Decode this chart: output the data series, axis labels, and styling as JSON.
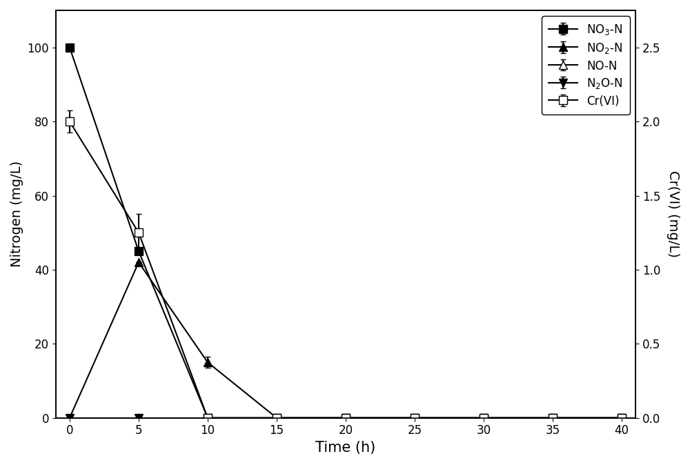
{
  "time": [
    0,
    5,
    10,
    15,
    20,
    25,
    30,
    35,
    40
  ],
  "NO3N": [
    100,
    45,
    0,
    0,
    0,
    0,
    0,
    0,
    0
  ],
  "NO3N_err": [
    0,
    0,
    0,
    0,
    0,
    0,
    0,
    0,
    0
  ],
  "NO2N": [
    0,
    42,
    15,
    0,
    0,
    0,
    0,
    0,
    0
  ],
  "NO2N_err": [
    0,
    0,
    1.5,
    0,
    0,
    0,
    0,
    0,
    0
  ],
  "NON": [
    0,
    0,
    0,
    0,
    0,
    0,
    0,
    0,
    0
  ],
  "NON_err": [
    0,
    0,
    0,
    0,
    0,
    0,
    0,
    0,
    0
  ],
  "N2ON": [
    0,
    0,
    0,
    0,
    0,
    0,
    0,
    0,
    0
  ],
  "N2ON_err": [
    0,
    0,
    0,
    0,
    0,
    0,
    0,
    0,
    0
  ],
  "CrVI": [
    2.0,
    1.25,
    0.0,
    0.0,
    0.0,
    0.0,
    0.0,
    0.0,
    0.0
  ],
  "CrVI_err": [
    0.075,
    0.125,
    0.0,
    0.0,
    0.0,
    0.0,
    0.0,
    0.0,
    0.0
  ],
  "ylim_left": [
    0,
    110
  ],
  "ylim_right": [
    0.0,
    2.75
  ],
  "ylabel_left": "Nitrogen (mg/L)",
  "ylabel_right": "Cr(VI) (mg/L)",
  "xlabel": "Time (h)",
  "color": "black",
  "legend_labels": [
    "NO$_3$-N",
    "NO$_2$-N",
    "NO-N",
    "N$_2$O-N",
    "Cr(VI)"
  ],
  "xticks": [
    0,
    5,
    10,
    15,
    20,
    25,
    30,
    35,
    40
  ],
  "yticks_left": [
    0,
    20,
    40,
    60,
    80,
    100
  ],
  "yticks_right": [
    0.0,
    0.5,
    1.0,
    1.5,
    2.0,
    2.5
  ],
  "markersize": 9,
  "linewidth": 1.5,
  "capsize": 3,
  "legend_fontsize": 12,
  "axis_label_fontsize": 14,
  "tick_fontsize": 12,
  "xlabel_fontsize": 15
}
